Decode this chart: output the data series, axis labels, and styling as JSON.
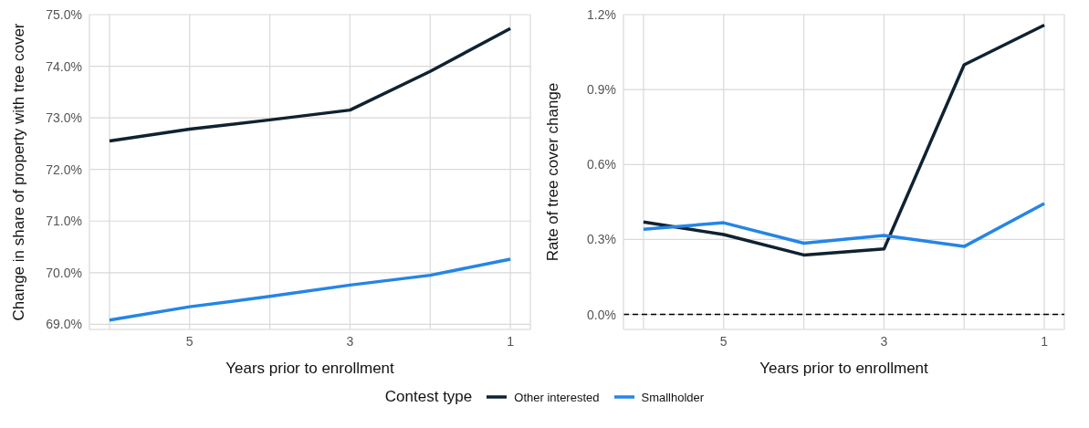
{
  "chart_data": [
    {
      "type": "line",
      "xlabel": "Years prior to enrollment",
      "ylabel": "Change in share of property with tree cover",
      "legend_title": "Contest type",
      "legend": "bottom",
      "grid": true,
      "line_style": "solid",
      "marker": "none",
      "x": [
        6,
        5,
        4,
        3,
        2,
        1
      ],
      "xlim": [
        6.25,
        0.75
      ],
      "xticks": [
        {
          "value": 6,
          "label": null
        },
        5,
        {
          "value": 4,
          "label": null
        },
        3,
        {
          "value": 2,
          "label": null
        },
        1
      ],
      "ylim": [
        68.9,
        75.0
      ],
      "yticks": [
        {
          "value": 69,
          "label": "69.0%"
        },
        {
          "value": 70,
          "label": "70.0%"
        },
        {
          "value": 71,
          "label": "71.0%"
        },
        {
          "value": 72,
          "label": "72.0%"
        },
        {
          "value": 73,
          "label": "73.0%"
        },
        {
          "value": 74,
          "label": "74.0%"
        },
        {
          "value": 75,
          "label": "75.0%"
        }
      ],
      "series": [
        {
          "name": "Other interested",
          "color": "#0f2231",
          "values": [
            72.55,
            72.78,
            72.96,
            73.15,
            73.9,
            74.73
          ]
        },
        {
          "name": "Smallholder",
          "color": "#2585e6",
          "values": [
            69.08,
            69.34,
            69.54,
            69.76,
            69.95,
            70.26
          ]
        }
      ]
    },
    {
      "type": "line",
      "xlabel": "Years prior to enrollment",
      "ylabel": "Rate of tree cover change",
      "legend": "bottom",
      "grid": true,
      "line_style": "solid",
      "marker": "none",
      "x": [
        6,
        5,
        4,
        3,
        2,
        1
      ],
      "xlim": [
        6.25,
        0.75
      ],
      "xticks": [
        {
          "value": 6,
          "label": null
        },
        5,
        {
          "value": 4,
          "label": null
        },
        3,
        {
          "value": 2,
          "label": null
        },
        1
      ],
      "ylim": [
        -0.06,
        1.2
      ],
      "yticks": [
        {
          "value": 0,
          "label": "0.0%"
        },
        {
          "value": 0.3,
          "label": "0.3%"
        },
        {
          "value": 0.6,
          "label": "0.6%"
        },
        {
          "value": 0.9,
          "label": "0.9%"
        },
        {
          "value": 1.2,
          "label": "1.2%"
        }
      ],
      "ref_lines": [
        {
          "axis": "y",
          "value": 0,
          "color": "#000000",
          "line_style": "dashed"
        }
      ],
      "series": [
        {
          "name": "Other interested",
          "color": "#0f2231",
          "values": [
            0.37,
            0.32,
            0.238,
            0.262,
            0.999,
            1.158
          ]
        },
        {
          "name": "Smallholder",
          "color": "#2585e6",
          "values": [
            0.341,
            0.367,
            0.285,
            0.316,
            0.272,
            0.444
          ]
        }
      ]
    }
  ]
}
